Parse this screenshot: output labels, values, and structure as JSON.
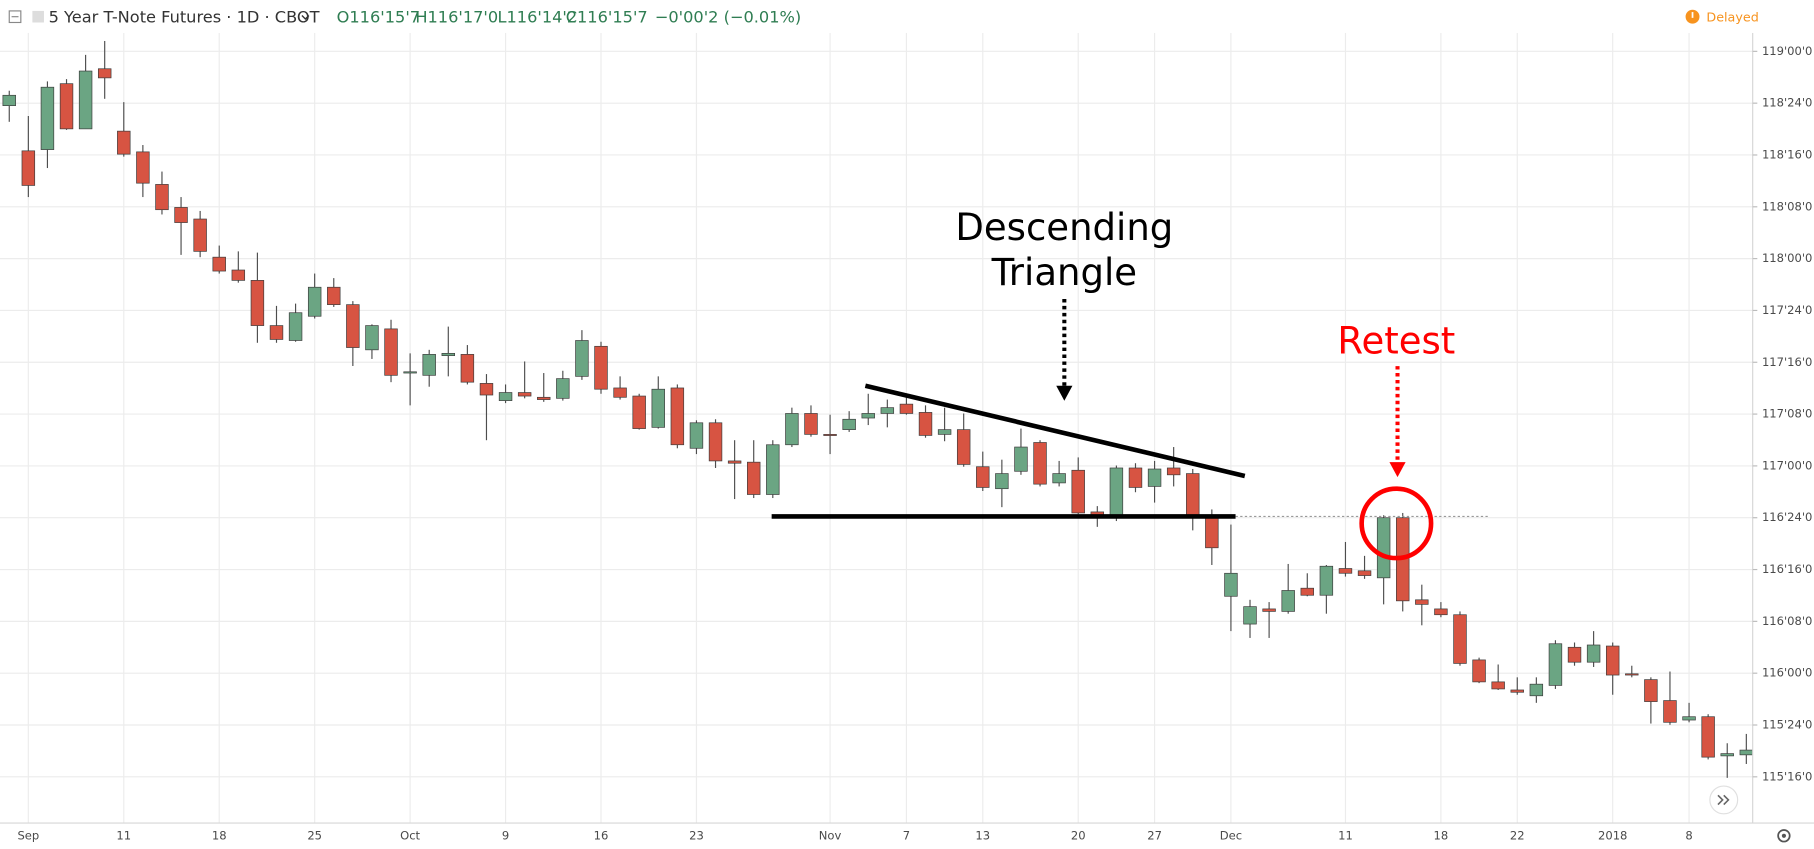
{
  "header": {
    "title": "5 Year T-Note Futures · 1D · CBOT",
    "open": "O116'15'7",
    "high": "H116'17'0",
    "low": "L116'14'2",
    "close": "C116'15'7",
    "change": "−0'00'2 (−0.01%)",
    "status": "Delayed"
  },
  "chart_data": {
    "type": "candlestick",
    "categories": [
      null,
      "Sep",
      null,
      null,
      null,
      null,
      "11",
      null,
      null,
      null,
      null,
      "18",
      null,
      null,
      null,
      null,
      "25",
      null,
      null,
      null,
      null,
      "Oct",
      null,
      null,
      null,
      null,
      "9",
      null,
      null,
      null,
      null,
      "16",
      null,
      null,
      null,
      null,
      "23",
      null,
      null,
      null,
      null,
      null,
      null,
      "Nov",
      null,
      null,
      null,
      "7",
      null,
      null,
      null,
      "13",
      null,
      null,
      null,
      null,
      "20",
      null,
      null,
      null,
      "27",
      null,
      null,
      null,
      "Dec",
      null,
      null,
      null,
      null,
      null,
      "11",
      null,
      null,
      null,
      null,
      "18",
      null,
      null,
      null,
      "22",
      null,
      null,
      null,
      null,
      "2018",
      null,
      null,
      null,
      "8",
      null,
      null,
      null
    ],
    "open": [
      118.738,
      118.52,
      118.526,
      118.844,
      118.626,
      118.916,
      118.615,
      118.515,
      118.358,
      118.247,
      118.191,
      118.007,
      117.945,
      117.895,
      117.677,
      117.605,
      117.722,
      117.862,
      117.778,
      117.56,
      117.661,
      117.448,
      117.437,
      117.532,
      117.538,
      117.398,
      117.315,
      117.354,
      117.331,
      117.326,
      117.432,
      117.577,
      117.376,
      117.337,
      117.186,
      117.376,
      117.085,
      117.208,
      117.024,
      117.018,
      116.862,
      117.102,
      117.253,
      117.152,
      117.175,
      117.231,
      117.253,
      117.298,
      117.258,
      117.152,
      117.175,
      116.996,
      116.89,
      116.974,
      117.113,
      116.918,
      116.979,
      116.778,
      116.762,
      116.99,
      116.901,
      116.99,
      116.963,
      116.756,
      116.371,
      116.237,
      116.31,
      116.298,
      116.41,
      116.376,
      116.505,
      116.494,
      116.46,
      116.75,
      116.354,
      116.31,
      116.282,
      116.064,
      115.958,
      115.919,
      115.891,
      115.941,
      116.125,
      116.053,
      116.131,
      115.997,
      115.969,
      115.868,
      115.774,
      115.79,
      115.601,
      115.606
    ],
    "high": [
      118.81,
      118.688,
      118.855,
      118.866,
      118.983,
      119.05,
      118.755,
      118.548,
      118.42,
      118.297,
      118.23,
      118.063,
      118.035,
      118.029,
      117.772,
      117.783,
      117.928,
      117.906,
      117.795,
      117.683,
      117.705,
      117.543,
      117.56,
      117.672,
      117.583,
      117.443,
      117.393,
      117.504,
      117.448,
      117.459,
      117.655,
      117.599,
      117.432,
      117.348,
      117.432,
      117.393,
      117.22,
      117.225,
      117.124,
      117.124,
      117.124,
      117.281,
      117.292,
      117.247,
      117.264,
      117.348,
      117.32,
      117.348,
      117.292,
      117.281,
      117.253,
      117.069,
      117.03,
      117.18,
      117.124,
      117.024,
      117.041,
      116.806,
      117.002,
      117.013,
      117.024,
      117.091,
      116.985,
      116.79,
      116.717,
      116.354,
      116.343,
      116.527,
      116.482,
      116.522,
      116.633,
      116.566,
      116.762,
      116.773,
      116.427,
      116.343,
      116.298,
      116.075,
      116.042,
      115.98,
      115.98,
      116.159,
      116.148,
      116.203,
      116.148,
      116.036,
      115.98,
      116.008,
      115.857,
      115.802,
      115.662,
      115.707
    ],
    "low": [
      118.66,
      118.297,
      118.437,
      118.621,
      118.626,
      118.771,
      118.492,
      118.297,
      118.213,
      118.018,
      118.007,
      117.928,
      117.884,
      117.594,
      117.594,
      117.599,
      117.711,
      117.767,
      117.482,
      117.516,
      117.404,
      117.292,
      117.382,
      117.432,
      117.393,
      117.124,
      117.303,
      117.326,
      117.309,
      117.315,
      117.415,
      117.348,
      117.32,
      117.175,
      117.18,
      117.085,
      117.057,
      116.99,
      116.84,
      116.845,
      116.845,
      117.091,
      117.141,
      117.057,
      117.164,
      117.197,
      117.186,
      117.247,
      117.136,
      117.119,
      116.996,
      116.879,
      116.801,
      116.957,
      116.901,
      116.901,
      116.767,
      116.706,
      116.734,
      116.873,
      116.823,
      116.901,
      116.689,
      116.522,
      116.203,
      116.17,
      116.17,
      116.287,
      116.371,
      116.287,
      116.466,
      116.455,
      116.332,
      116.298,
      116.231,
      116.27,
      116.036,
      115.952,
      115.919,
      115.896,
      115.857,
      115.924,
      116.036,
      116.03,
      115.896,
      115.98,
      115.757,
      115.751,
      115.763,
      115.584,
      115.495,
      115.562
    ],
    "close": [
      118.788,
      118.353,
      118.827,
      118.626,
      118.905,
      118.872,
      118.504,
      118.364,
      118.236,
      118.174,
      118.035,
      117.94,
      117.895,
      117.677,
      117.61,
      117.739,
      117.862,
      117.778,
      117.571,
      117.677,
      117.437,
      117.454,
      117.538,
      117.543,
      117.404,
      117.342,
      117.354,
      117.337,
      117.32,
      117.421,
      117.605,
      117.37,
      117.331,
      117.18,
      117.37,
      117.102,
      117.208,
      117.024,
      117.013,
      116.862,
      117.102,
      117.253,
      117.152,
      117.147,
      117.225,
      117.253,
      117.281,
      117.253,
      117.147,
      117.175,
      117.007,
      116.896,
      116.963,
      117.091,
      116.912,
      116.963,
      116.773,
      116.762,
      116.99,
      116.896,
      116.985,
      116.957,
      116.756,
      116.605,
      116.482,
      116.321,
      116.298,
      116.399,
      116.376,
      116.516,
      116.482,
      116.471,
      116.75,
      116.349,
      116.332,
      116.282,
      116.047,
      115.958,
      115.924,
      115.908,
      115.947,
      116.142,
      116.053,
      116.136,
      115.991,
      115.991,
      115.863,
      115.763,
      115.79,
      115.595,
      115.612,
      115.629
    ],
    "up_color": "#6ba583",
    "down_color": "#d75442",
    "ylim": [
      115.277,
      119.089
    ],
    "yticks": [
      {
        "value": 119,
        "label": "119'00'0"
      },
      {
        "value": 118.75,
        "label": "118'24'0"
      },
      {
        "value": 118.5,
        "label": "118'16'0"
      },
      {
        "value": 118.25,
        "label": "118'08'0"
      },
      {
        "value": 118,
        "label": "118'00'0"
      },
      {
        "value": 117.75,
        "label": "117'24'0"
      },
      {
        "value": 117.5,
        "label": "117'16'0"
      },
      {
        "value": 117.25,
        "label": "117'08'0"
      },
      {
        "value": 117,
        "label": "117'00'0"
      },
      {
        "value": 116.75,
        "label": "116'24'0"
      },
      {
        "value": 116.5,
        "label": "116'16'0"
      },
      {
        "value": 116.25,
        "label": "116'08'0"
      },
      {
        "value": 116,
        "label": "116'00'0"
      },
      {
        "value": 115.75,
        "label": "115'24'0"
      },
      {
        "value": 115.5,
        "label": "115'16'0"
      }
    ],
    "grid": true,
    "annotations": [
      {
        "lines": [
          "Descending",
          "Triangle"
        ]
      },
      {
        "lines": [
          "Retest"
        ]
      }
    ]
  }
}
